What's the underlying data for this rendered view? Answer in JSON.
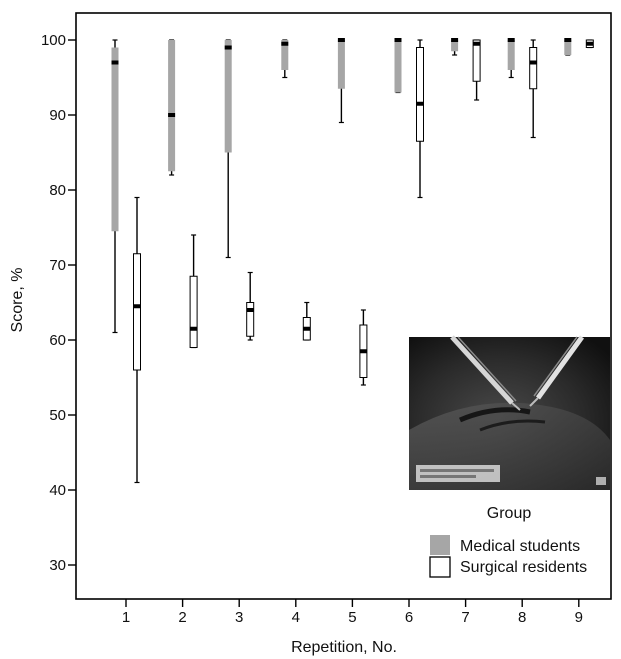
{
  "chart_data": {
    "type": "boxplot",
    "title": "",
    "xlabel": "Repetition, No.",
    "ylabel": "Score, %",
    "ylim": [
      22,
      104
    ],
    "y_ticks": [
      30,
      40,
      50,
      60,
      70,
      80,
      90,
      100
    ],
    "x_ticks": [
      1,
      2,
      3,
      4,
      5,
      6,
      7,
      8,
      9
    ],
    "x_ticks_labels": [
      "1",
      "2",
      "3",
      "4",
      "5",
      "6",
      "7",
      "8",
      "9"
    ],
    "grid": false,
    "legend": {
      "title": "Group",
      "placement": "bottom-right",
      "entries": [
        "Medical students",
        "Surgical residents"
      ]
    },
    "series": [
      {
        "name": "Medical students",
        "color": "#a6a6a6",
        "boxes": [
          {
            "x": 1,
            "min": 61,
            "q1": 74.5,
            "median": 97,
            "q3": 99,
            "max": 100
          },
          {
            "x": 2,
            "min": 82,
            "q1": 82.5,
            "median": 90,
            "q3": 100,
            "max": 100
          },
          {
            "x": 3,
            "min": 71,
            "q1": 85,
            "median": 99,
            "q3": 100,
            "max": 100
          },
          {
            "x": 4,
            "min": 95,
            "q1": 96,
            "median": 99.5,
            "q3": 100,
            "max": 100
          },
          {
            "x": 5,
            "min": 89,
            "q1": 93.5,
            "median": 100,
            "q3": 100,
            "max": 100
          },
          {
            "x": 6,
            "min": 93,
            "q1": 93,
            "median": 100,
            "q3": 100,
            "max": 100
          },
          {
            "x": 7,
            "min": 98,
            "q1": 98.5,
            "median": 100,
            "q3": 100,
            "max": 100
          },
          {
            "x": 8,
            "min": 95,
            "q1": 96,
            "median": 100,
            "q3": 100,
            "max": 100
          },
          {
            "x": 9,
            "min": 98,
            "q1": 98,
            "median": 100,
            "q3": 100,
            "max": 100
          }
        ]
      },
      {
        "name": "Surgical residents",
        "color": "#ffffff",
        "boxes": [
          {
            "x": 1,
            "min": 41,
            "q1": 56,
            "median": 64.5,
            "q3": 71.5,
            "max": 79
          },
          {
            "x": 2,
            "min": 59,
            "q1": 59,
            "median": 61.5,
            "q3": 68.5,
            "max": 74
          },
          {
            "x": 3,
            "min": 60,
            "q1": 60.5,
            "median": 64,
            "q3": 65,
            "max": 69
          },
          {
            "x": 4,
            "min": 60,
            "q1": 60,
            "median": 61.5,
            "q3": 63,
            "max": 65
          },
          {
            "x": 5,
            "min": 54,
            "q1": 55,
            "median": 58.5,
            "q3": 62,
            "max": 64
          },
          {
            "x": 6,
            "min": 79,
            "q1": 86.5,
            "median": 91.5,
            "q3": 99,
            "max": 100
          },
          {
            "x": 7,
            "min": 92,
            "q1": 94.5,
            "median": 99.5,
            "q3": 100,
            "max": 100
          },
          {
            "x": 8,
            "min": 87,
            "q1": 93.5,
            "median": 97,
            "q3": 99,
            "max": 100
          },
          {
            "x": 9,
            "min": 99,
            "q1": 99,
            "median": 99.5,
            "q3": 100,
            "max": 100
          }
        ]
      }
    ]
  }
}
